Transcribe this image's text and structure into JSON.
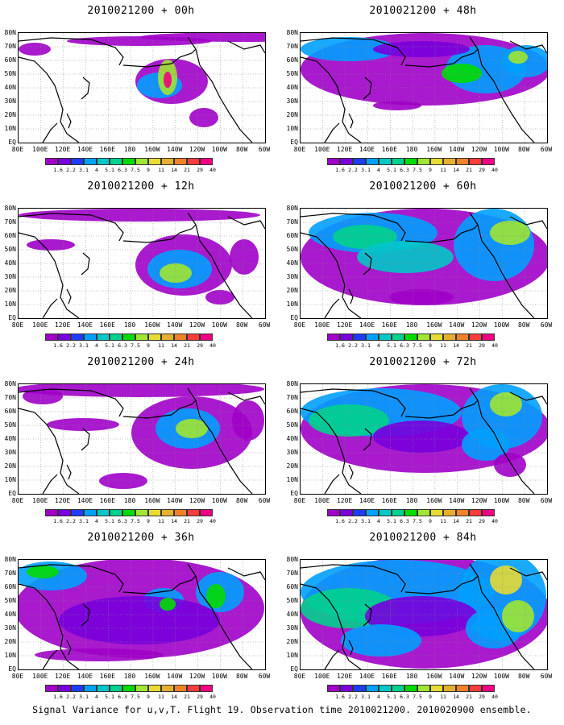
{
  "caption": "Signal Variance for u,v,T. Flight 19. Observation time 2010021200. 2010020900 ensemble.",
  "panels": [
    {
      "title": "2010021200 + 00h",
      "stage": 0
    },
    {
      "title": "2010021200 + 48h",
      "stage": 4
    },
    {
      "title": "2010021200 + 12h",
      "stage": 1
    },
    {
      "title": "2010021200 + 60h",
      "stage": 5
    },
    {
      "title": "2010021200 + 24h",
      "stage": 2
    },
    {
      "title": "2010021200 + 72h",
      "stage": 6
    },
    {
      "title": "2010021200 + 36h",
      "stage": 3
    },
    {
      "title": "2010021200 + 84h",
      "stage": 7
    }
  ],
  "lat_labels": [
    "80N",
    "70N",
    "60N",
    "50N",
    "40N",
    "30N",
    "20N",
    "10N",
    "EQ"
  ],
  "lon_labels": [
    "80E",
    "100E",
    "120E",
    "140E",
    "160E",
    "180",
    "160W",
    "140W",
    "120W",
    "100W",
    "80W",
    "60W"
  ],
  "colorbar": {
    "labels": [
      "1.6",
      "2.2",
      "3.1",
      "4",
      "5.1",
      "6.3",
      "7.5",
      "9",
      "11",
      "14",
      "21",
      "29",
      "40"
    ],
    "colors": [
      "#a000c8",
      "#7800dc",
      "#1e3cff",
      "#00a0ff",
      "#00c8c8",
      "#00d28c",
      "#00dc00",
      "#a0e632",
      "#e6dc32",
      "#e6af2d",
      "#f08228",
      "#fa3c3c",
      "#f00082"
    ]
  }
}
